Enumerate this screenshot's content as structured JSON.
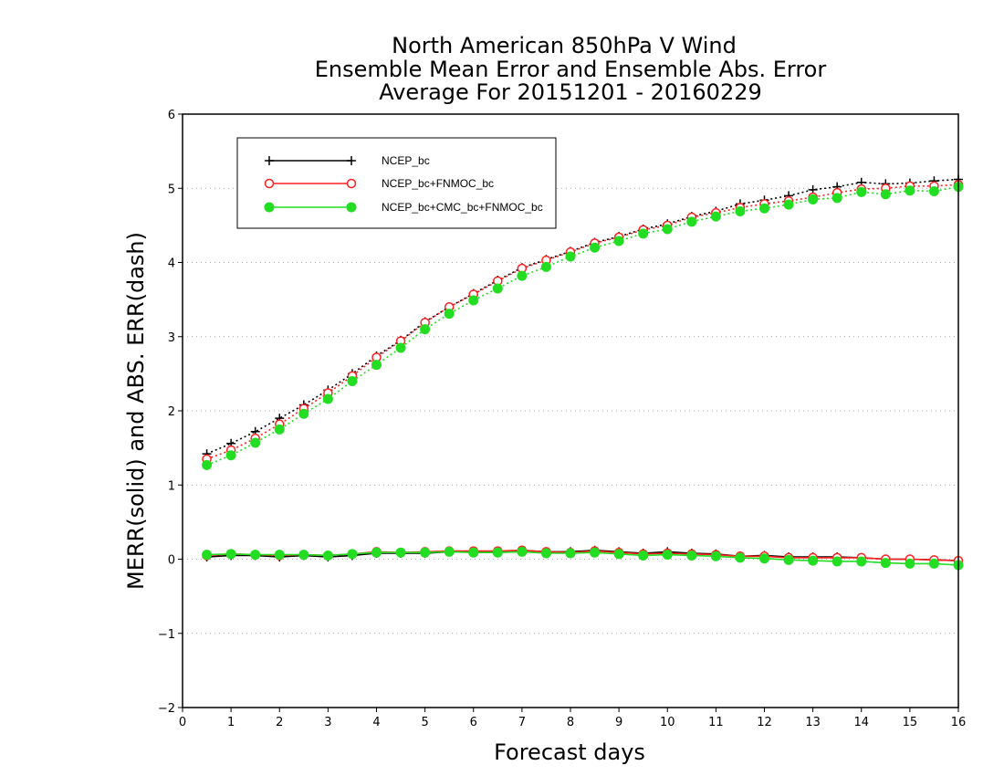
{
  "chart_data": {
    "type": "line",
    "title_lines": [
      "North American 850hPa V Wind",
      "Ensemble Mean Error and Ensemble Abs. Error",
      "Average For 20151201 - 20160229"
    ],
    "xlabel": "Forecast days",
    "ylabel": "MERR(solid) and ABS. ERR(dash)",
    "xlim": [
      0,
      16
    ],
    "ylim": [
      -2,
      6
    ],
    "x_ticks": [
      "0",
      "1",
      "2",
      "3",
      "4",
      "5",
      "6",
      "7",
      "8",
      "9",
      "10",
      "11",
      "12",
      "13",
      "14",
      "15",
      "16"
    ],
    "y_ticks": [
      "−2",
      "−1",
      "0",
      "1",
      "2",
      "3",
      "4",
      "5",
      "6"
    ],
    "grid": "horizontal dotted",
    "legend_position": "top-left",
    "x": [
      0.5,
      1,
      1.5,
      2,
      2.5,
      3,
      3.5,
      4,
      4.5,
      5,
      5.5,
      6,
      6.5,
      7,
      7.5,
      8,
      8.5,
      9,
      9.5,
      10,
      10.5,
      11,
      11.5,
      12,
      12.5,
      13,
      13.5,
      14,
      14.5,
      15,
      15.5,
      16
    ],
    "series": [
      {
        "name": "NCEP_bc",
        "color": "#000000",
        "marker": "plus",
        "merr": [
          0.03,
          0.05,
          0.05,
          0.03,
          0.05,
          0.03,
          0.05,
          0.08,
          0.08,
          0.08,
          0.1,
          0.1,
          0.1,
          0.12,
          0.1,
          0.1,
          0.12,
          0.1,
          0.08,
          0.1,
          0.08,
          0.07,
          0.04,
          0.05,
          0.03,
          0.03,
          0.03,
          0.02,
          0.0,
          0.0,
          -0.01,
          -0.02
        ],
        "abs_err": [
          1.42,
          1.56,
          1.72,
          1.9,
          2.08,
          2.28,
          2.5,
          2.74,
          2.95,
          3.2,
          3.4,
          3.58,
          3.76,
          3.93,
          4.04,
          4.15,
          4.27,
          4.35,
          4.45,
          4.52,
          4.62,
          4.69,
          4.79,
          4.84,
          4.9,
          4.98,
          5.02,
          5.08,
          5.06,
          5.07,
          5.1,
          5.12
        ]
      },
      {
        "name": "NCEP_bc+FNMOC_bc",
        "color": "#ff2020",
        "marker": "open-circle",
        "merr": [
          0.05,
          0.07,
          0.06,
          0.05,
          0.06,
          0.05,
          0.07,
          0.1,
          0.09,
          0.1,
          0.11,
          0.11,
          0.11,
          0.12,
          0.1,
          0.09,
          0.11,
          0.09,
          0.07,
          0.08,
          0.07,
          0.06,
          0.04,
          0.04,
          0.02,
          0.02,
          0.02,
          0.02,
          0.0,
          0.0,
          -0.01,
          -0.02
        ],
        "abs_err": [
          1.35,
          1.47,
          1.63,
          1.82,
          2.03,
          2.24,
          2.47,
          2.72,
          2.94,
          3.19,
          3.4,
          3.57,
          3.75,
          3.92,
          4.03,
          4.14,
          4.26,
          4.34,
          4.44,
          4.5,
          4.61,
          4.67,
          4.74,
          4.79,
          4.83,
          4.88,
          4.94,
          4.99,
          5.0,
          5.03,
          5.03,
          5.05
        ]
      },
      {
        "name": "NCEP_bc+CMC_bc+FNMOC_bc",
        "color": "#22dd22",
        "marker": "filled-circle",
        "merr": [
          0.06,
          0.07,
          0.06,
          0.06,
          0.06,
          0.05,
          0.07,
          0.09,
          0.09,
          0.09,
          0.1,
          0.09,
          0.09,
          0.1,
          0.08,
          0.08,
          0.09,
          0.07,
          0.05,
          0.06,
          0.05,
          0.04,
          0.02,
          0.01,
          -0.01,
          -0.02,
          -0.03,
          -0.03,
          -0.05,
          -0.06,
          -0.06,
          -0.08
        ],
        "abs_err": [
          1.27,
          1.4,
          1.57,
          1.75,
          1.96,
          2.16,
          2.4,
          2.62,
          2.85,
          3.1,
          3.31,
          3.49,
          3.65,
          3.82,
          3.94,
          4.08,
          4.2,
          4.29,
          4.39,
          4.45,
          4.55,
          4.62,
          4.69,
          4.73,
          4.78,
          4.85,
          4.87,
          4.95,
          4.92,
          4.97,
          4.96,
          5.02
        ]
      }
    ]
  }
}
